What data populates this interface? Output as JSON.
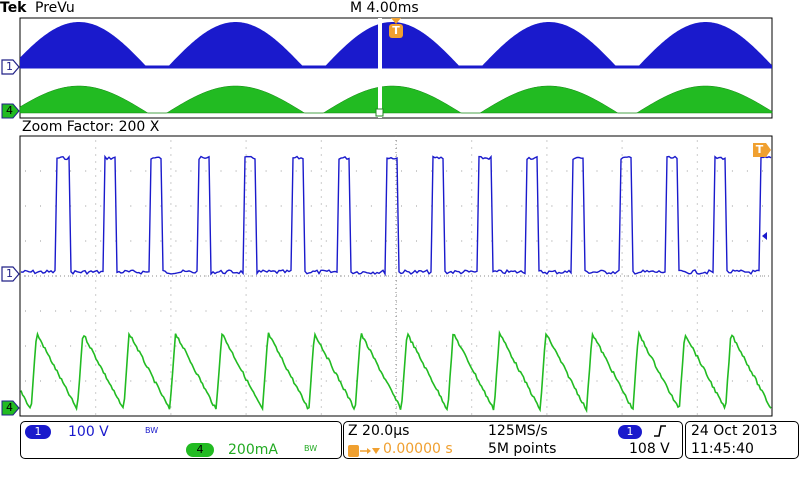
{
  "header": {
    "brand": "Tek",
    "mode": "PreVu",
    "timebase": "M 4.00ms",
    "trigger_marker": "T"
  },
  "overview": {
    "ch1_marker": "1",
    "ch4_marker": "4"
  },
  "zoom": {
    "label": "Zoom Factor: 200 X",
    "ch1_marker": "1",
    "ch4_marker": "4",
    "trigger_marker": "T"
  },
  "status": {
    "ch1_badge": "1",
    "ch1_scale": "100 V",
    "ch1_bw": "BW",
    "ch4_badge": "4",
    "ch4_scale": "200mA",
    "ch4_bw": "BW",
    "zoom_timebase": "Z 20.0µs",
    "sample_rate": "125MS/s",
    "trigger_position": "0.00000 s",
    "record_length": "5M points",
    "trigger_source_badge": "1",
    "trigger_slope_icon": "rising-edge",
    "trigger_level": "108 V",
    "date": "24 Oct  2013",
    "time": "11:45:40"
  },
  "colors": {
    "ch1": "#1a1acc",
    "ch4": "#22bb22",
    "trigger": "#f0a030",
    "marker_outline": "#222288"
  }
}
